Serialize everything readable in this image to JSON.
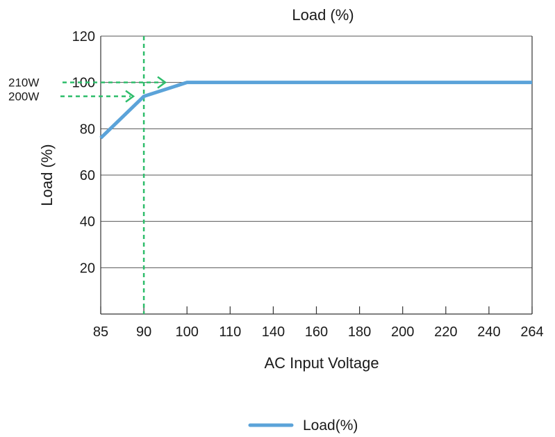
{
  "chart_data": {
    "type": "line",
    "title": "Load (%)",
    "xlabel": "AC Input Voltage",
    "ylabel": "Load (%)",
    "x_categories": [
      "85",
      "90",
      "100",
      "110",
      "140",
      "160",
      "180",
      "200",
      "220",
      "240",
      "264"
    ],
    "y_ticks": [
      "20",
      "40",
      "60",
      "80",
      "100",
      "120"
    ],
    "ylim": [
      0,
      120
    ],
    "grid": "horizontal",
    "legend_position": "bottom-center",
    "series": [
      {
        "name": "Load(%)",
        "color": "#5ba3d9",
        "points": [
          {
            "x": "85",
            "y": 76
          },
          {
            "x": "90",
            "y": 94
          },
          {
            "x": "100",
            "y": 100
          },
          {
            "x": "264",
            "y": 100
          }
        ]
      }
    ],
    "annotations": {
      "color": "#2ebd6b",
      "vertical_marker_x": "90",
      "labels": [
        {
          "text": "210W",
          "y": 100
        },
        {
          "text": "200W",
          "y": 94
        }
      ]
    }
  }
}
